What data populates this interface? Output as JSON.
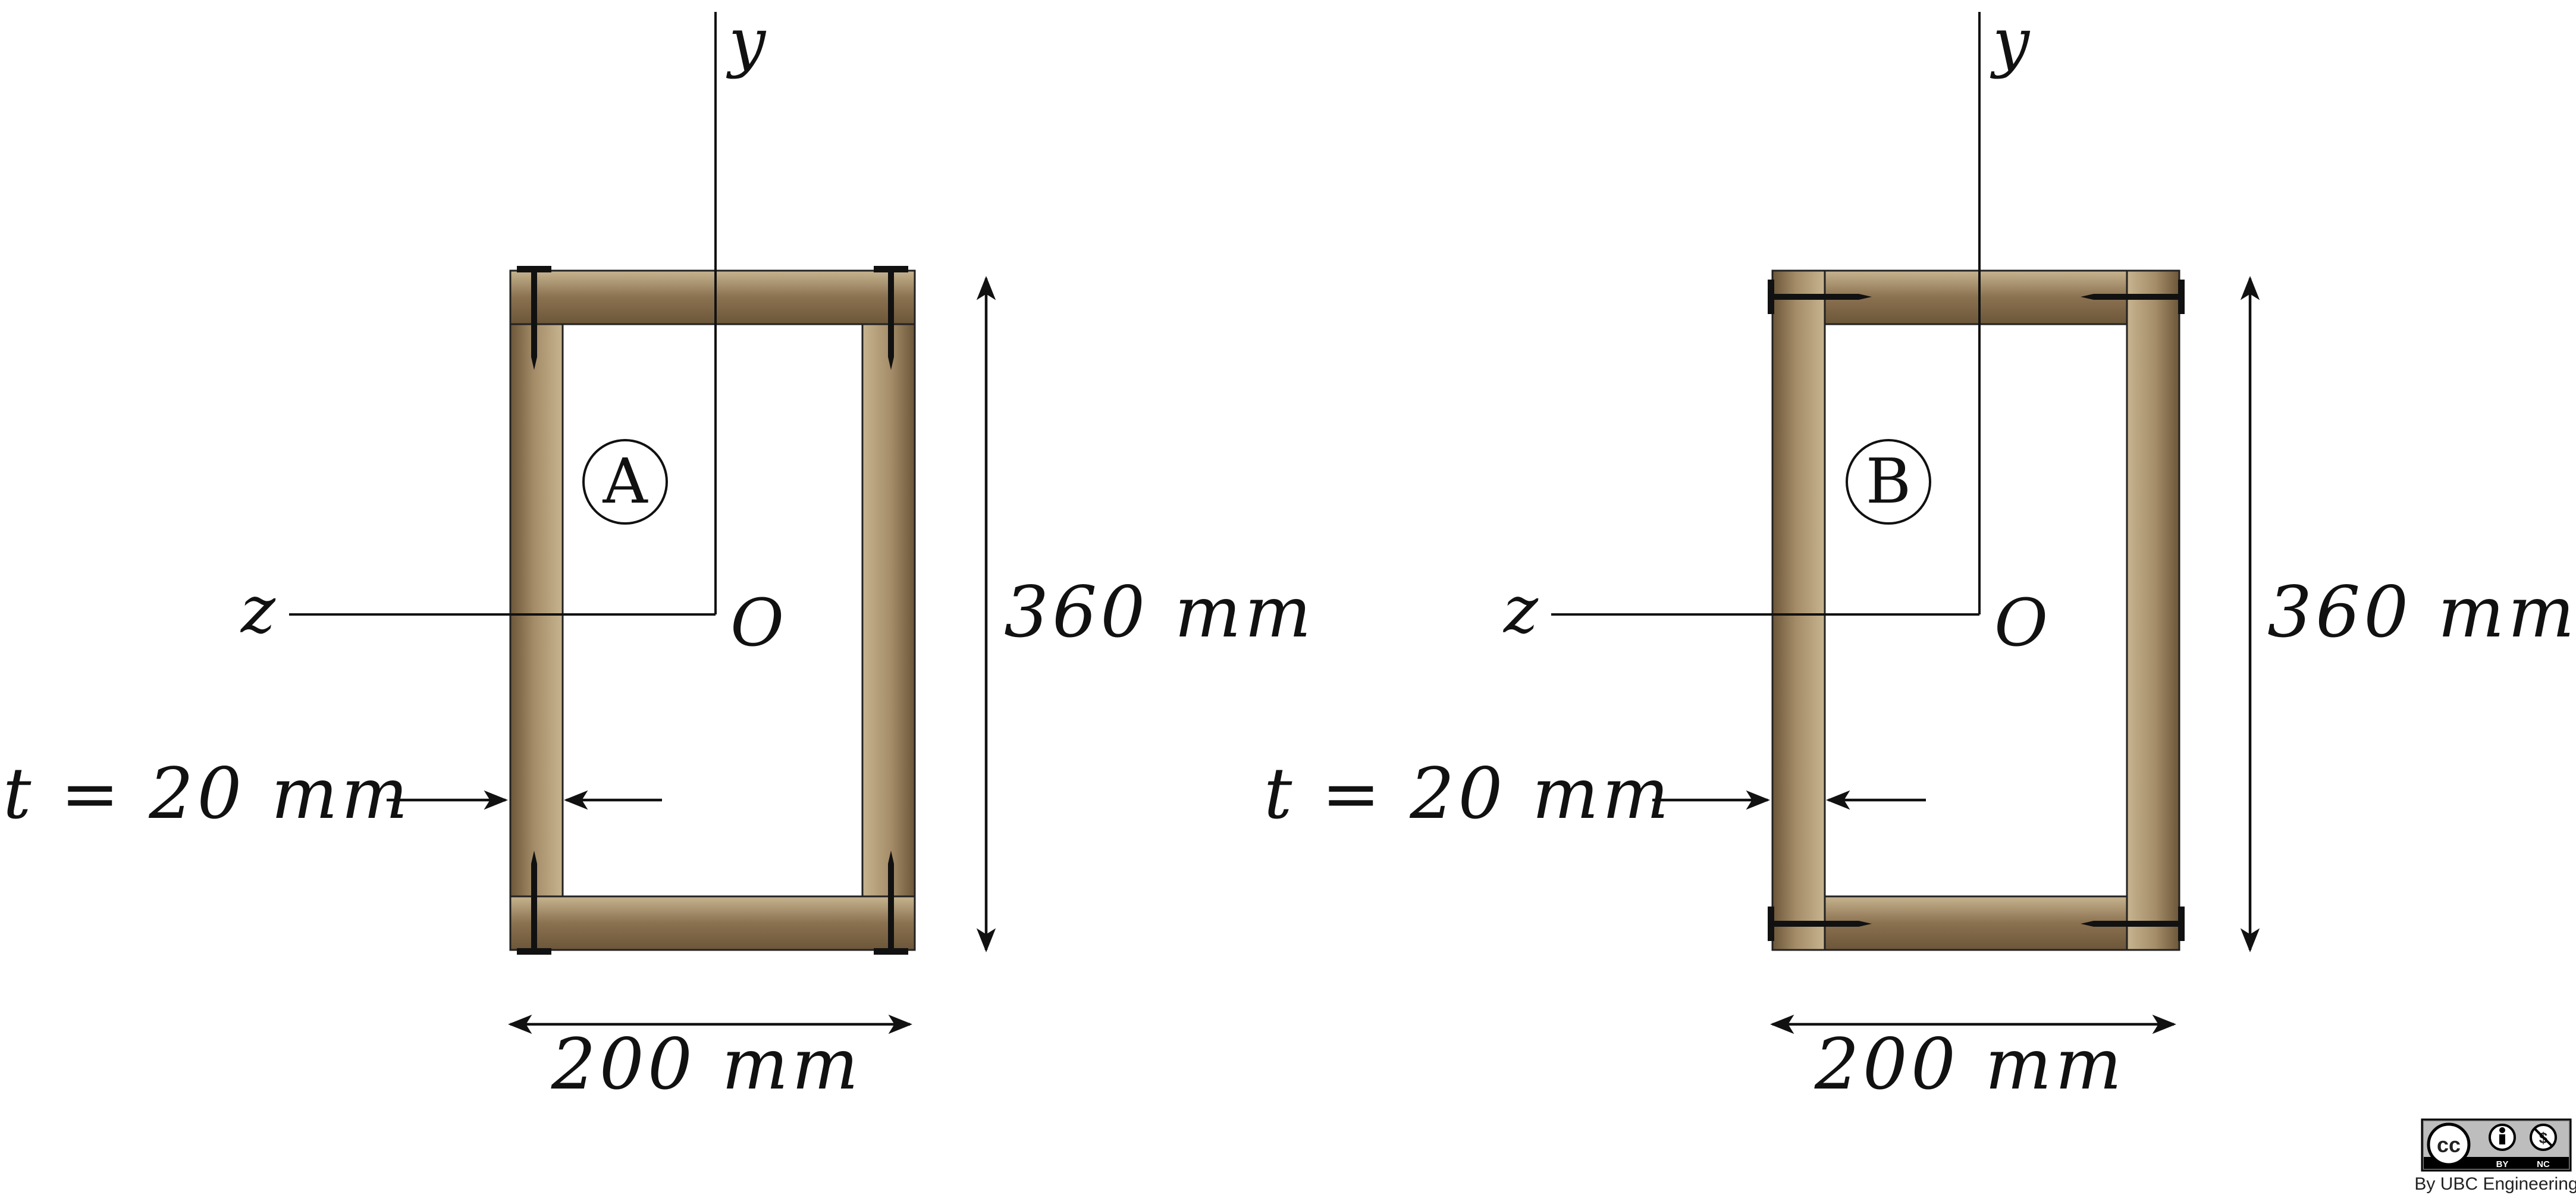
{
  "section_a": {
    "label": "A",
    "y_axis": "y",
    "z_axis": "z",
    "origin": "O",
    "height_label": "360 mm",
    "width_label": "200 mm",
    "thickness_label": "t = 20 mm"
  },
  "section_b": {
    "label": "B",
    "y_axis": "y",
    "z_axis": "z",
    "origin": "O",
    "height_label": "360 mm",
    "width_label": "200 mm",
    "thickness_label": "t = 20 mm"
  },
  "license": {
    "cc": "cc",
    "by": "BY",
    "nc": "NC",
    "credit": "By UBC Engineering"
  },
  "colors": {
    "wood_dark": "#7b6346",
    "wood_light": "#c4b08c",
    "ink": "#111111"
  }
}
